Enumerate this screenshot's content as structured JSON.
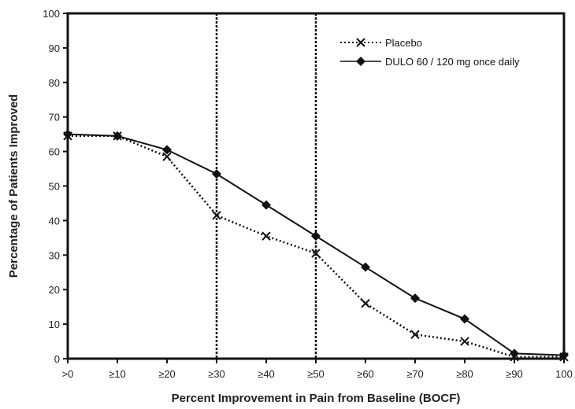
{
  "chart_data": {
    "type": "line",
    "xlabel": "Percent Improvement in Pain from Baseline (BOCF)",
    "ylabel": "Percentage of Patients Improved",
    "categories": [
      ">0",
      "≥10",
      "≥20",
      "≥30",
      "≥40",
      "≥50",
      "≥60",
      "≥70",
      "≥80",
      "≥90",
      "100"
    ],
    "ylim": [
      0,
      100
    ],
    "yticks": [
      0,
      10,
      20,
      30,
      40,
      50,
      60,
      70,
      80,
      90,
      100
    ],
    "reference_lines_at": [
      "≥30",
      "≥50"
    ],
    "legend_position": "top-right",
    "series": [
      {
        "name": "Placebo",
        "style": "dotted",
        "marker": "x",
        "color": "#111111",
        "values": [
          64.5,
          64.5,
          58.5,
          41.5,
          35.5,
          30.5,
          16,
          7,
          5,
          0.5,
          0.5
        ]
      },
      {
        "name": "DULO 60 / 120 mg once daily",
        "style": "solid",
        "marker": "diamond",
        "color": "#111111",
        "values": [
          65,
          64.5,
          60.5,
          53.5,
          44.5,
          35.5,
          26.5,
          17.5,
          11.5,
          1.5,
          1
        ]
      }
    ]
  }
}
